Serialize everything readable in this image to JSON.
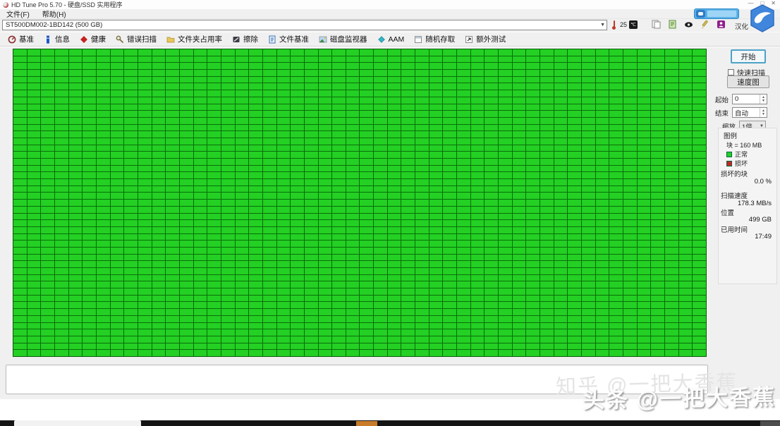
{
  "window": {
    "title": "HD Tune Pro 5.70 - 硬盘/SSD 实用程序",
    "minimize": "—",
    "maximize": "□",
    "close": "✕"
  },
  "menu": {
    "file": "文件(F)",
    "help": "帮助(H)"
  },
  "drive_bar": {
    "selected_drive": "ST500DM002-1BD142 (500 GB)",
    "dropdown_arrow": "▼",
    "temperature": "25",
    "temperature_unit": "℃",
    "hanhua": "汉化"
  },
  "toolbar": {
    "buttons": [
      {
        "icon": "benchmark-icon",
        "label": "基准"
      },
      {
        "icon": "info-icon",
        "label": "信息"
      },
      {
        "icon": "health-icon",
        "label": "健康"
      },
      {
        "icon": "error-scan-icon",
        "label": "错误扫描"
      },
      {
        "icon": "folder-usage-icon",
        "label": "文件夹占用率"
      },
      {
        "icon": "erase-icon",
        "label": "擦除"
      },
      {
        "icon": "file-benchmark-icon",
        "label": "文件基准"
      },
      {
        "icon": "disk-monitor-icon",
        "label": "磁盘监视器"
      },
      {
        "icon": "aam-icon",
        "label": "AAM"
      },
      {
        "icon": "random-access-icon",
        "label": "随机存取"
      },
      {
        "icon": "extra-tests-icon",
        "label": "额外测试"
      }
    ]
  },
  "scan_panel": {
    "start_button": "开始",
    "quick_scan_label": "快速扫描",
    "quick_scan_checked": false,
    "speed_map_button": "速度图",
    "fields": [
      {
        "label": "起始",
        "value": "0"
      },
      {
        "label": "结束",
        "value": "自动"
      },
      {
        "label": "缩放",
        "value": "1倍"
      }
    ],
    "legend": {
      "title": "图例",
      "block_size": "块 = 160 MB",
      "ok_label": "正常",
      "damaged_label": "损坏",
      "ok_color": "#23d023",
      "damaged_color": "#cc2222"
    },
    "stats": [
      {
        "label": "损坏的块",
        "value": "0.0 %"
      },
      {
        "label": "扫描速度",
        "value": "178.3 MB/s"
      },
      {
        "label": "位置",
        "value": "499 GB"
      },
      {
        "label": "已用时间",
        "value": "17:49"
      }
    ]
  },
  "grid": {
    "cols": 50,
    "rows": 45,
    "cell_color": "#23d023",
    "line_color": "#0b6e0b",
    "status": "all-blocks-ok"
  },
  "status_box": {
    "text": ""
  },
  "watermarks": {
    "zhihu": "知乎 @一把大香蕉",
    "toutiao": "头条 @一把大香蕉"
  },
  "colors": {
    "accent_blue": "#4da2c8",
    "grid_green": "#23d023",
    "panel_gray": "#f0f0f0"
  }
}
